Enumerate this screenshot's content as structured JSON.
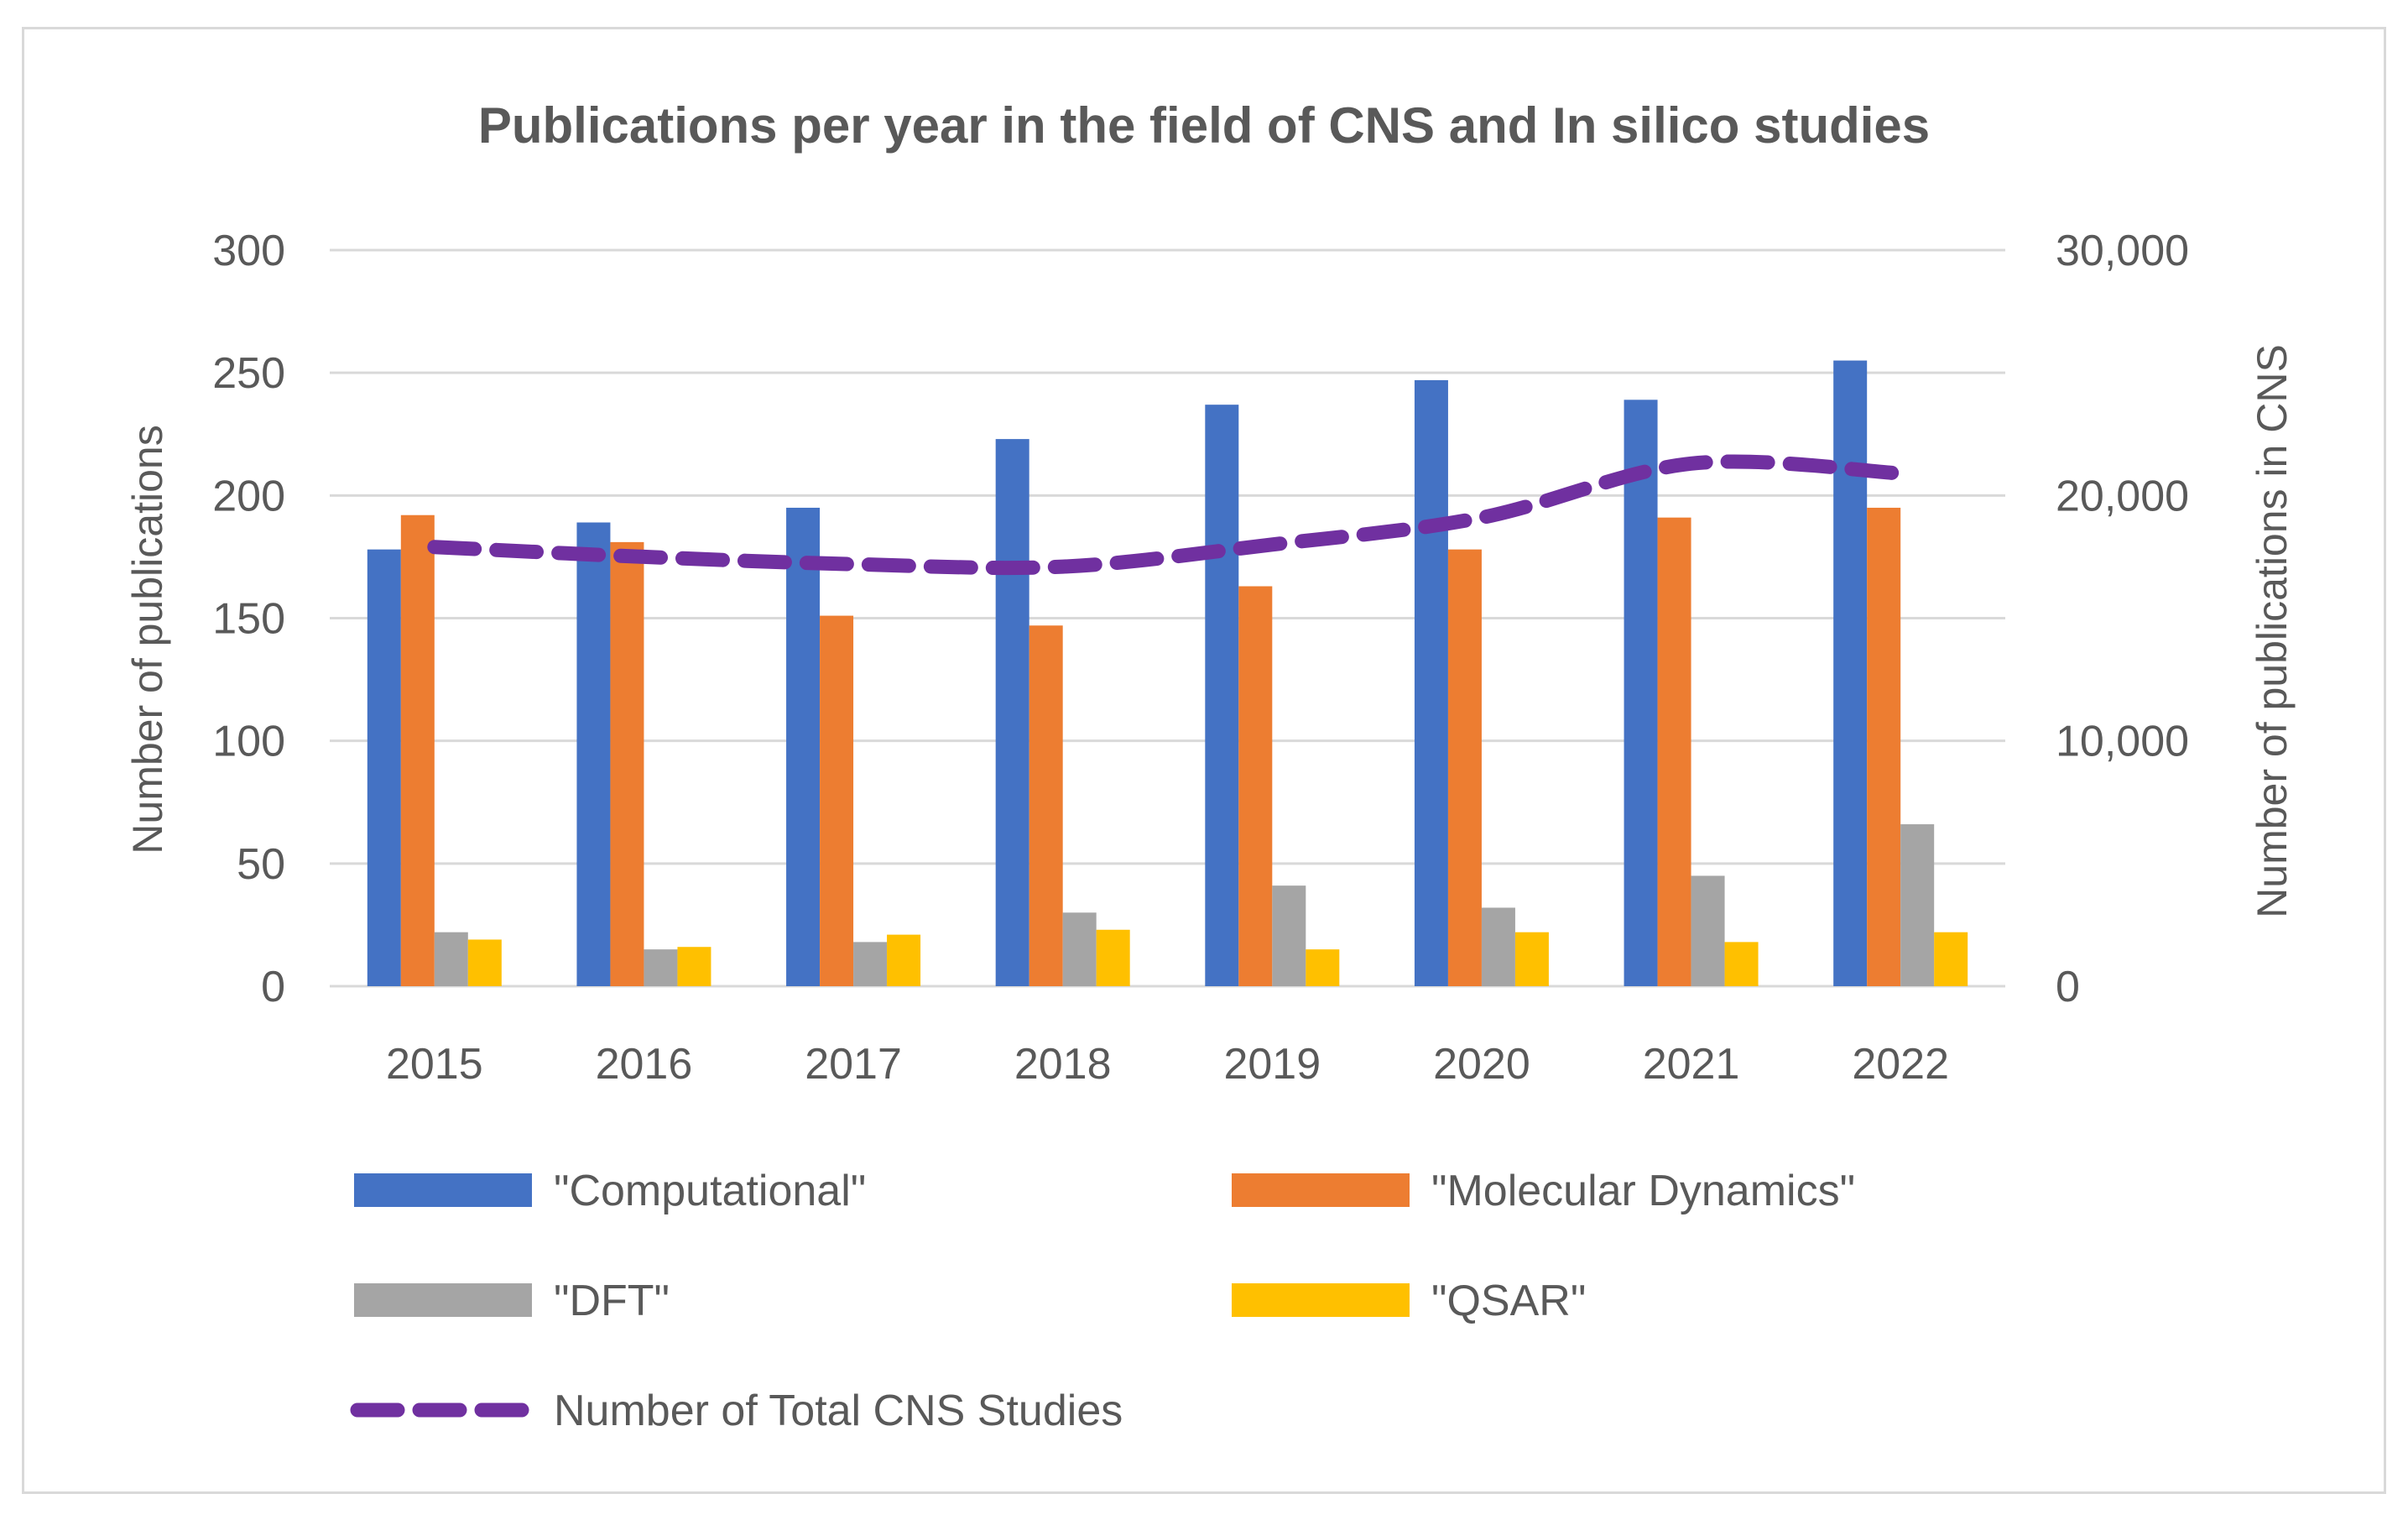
{
  "chart_data": {
    "type": "bar",
    "title": "Publications per year in the field of CNS and In silico studies",
    "xlabel": "",
    "ylabel": "Number of publications",
    "y2label": "Number of publications in CNS",
    "ylim": [
      0,
      300
    ],
    "y2lim": [
      0,
      30000
    ],
    "yticks": [
      "0",
      "50",
      "100",
      "150",
      "200",
      "250",
      "300"
    ],
    "y2ticks": [
      "0",
      "10,000",
      "20,000",
      "30,000"
    ],
    "grid": true,
    "legend_position": "bottom",
    "categories": [
      "2015",
      "2016",
      "2017",
      "2018",
      "2019",
      "2020",
      "2021",
      "2022"
    ],
    "series": [
      {
        "name": "\"Computational\"",
        "type": "bar",
        "axis": "left",
        "color": "#4472c4",
        "values": [
          178,
          189,
          195,
          223,
          237,
          247,
          239,
          255
        ]
      },
      {
        "name": "\"Molecular Dynamics\"",
        "type": "bar",
        "axis": "left",
        "color": "#ed7d31",
        "values": [
          192,
          181,
          151,
          147,
          163,
          178,
          191,
          195
        ]
      },
      {
        "name": "\"DFT\"",
        "type": "bar",
        "axis": "left",
        "color": "#a5a5a5",
        "values": [
          22,
          15,
          18,
          30,
          41,
          32,
          45,
          66
        ]
      },
      {
        "name": "\"QSAR\"",
        "type": "bar",
        "axis": "left",
        "color": "#ffc000",
        "values": [
          19,
          16,
          21,
          23,
          15,
          22,
          18,
          22
        ]
      },
      {
        "name": "Number of Total CNS Studies",
        "type": "line",
        "style": "dashed",
        "axis": "right",
        "color": "#7030a0",
        "values": [
          17900,
          17500,
          17200,
          17100,
          18000,
          19100,
          21300,
          20900
        ]
      }
    ]
  }
}
